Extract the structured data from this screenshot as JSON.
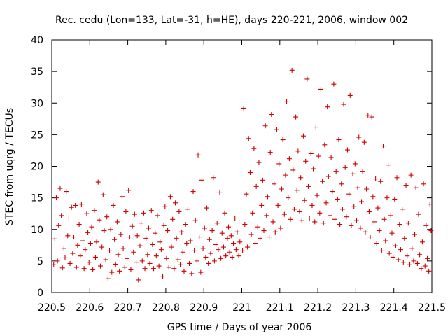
{
  "chart_data": {
    "type": "scatter",
    "title": "Rec. cedu (Lon=133, Lat=-31, h=HE), days 220-221, 2006, window 002",
    "xlabel": "GPS time / Days of year 2006",
    "ylabel": "STEC from uqrg / TECUs",
    "xlim": [
      220.5,
      221.5
    ],
    "ylim": [
      0,
      40
    ],
    "xticks": [
      220.5,
      220.6,
      220.7,
      220.8,
      220.9,
      221.0,
      221.1,
      221.2,
      221.3,
      221.4,
      221.5
    ],
    "xtick_labels": [
      "220.5",
      "220.6",
      "220.7",
      "220.8",
      "220.9",
      "221",
      "221.1",
      "221.2",
      "221.3",
      "221.4",
      "221.5"
    ],
    "yticks": [
      0,
      5,
      10,
      15,
      20,
      25,
      30,
      35,
      40
    ],
    "ytick_labels": [
      "0",
      "5",
      "10",
      "15",
      "20",
      "25",
      "30",
      "35",
      "40"
    ],
    "grid": false,
    "legend": "none",
    "marker_color": "#cc0000",
    "series": [
      {
        "marker": "plus",
        "points": [
          [
            220.505,
            4.4
          ],
          [
            220.508,
            8.5
          ],
          [
            220.512,
            15.0
          ],
          [
            220.515,
            5.0
          ],
          [
            220.518,
            10.6
          ],
          [
            220.522,
            16.5
          ],
          [
            220.525,
            12.2
          ],
          [
            220.528,
            3.9
          ],
          [
            220.532,
            7.0
          ],
          [
            220.535,
            5.5
          ],
          [
            220.538,
            16.0
          ],
          [
            220.542,
            9.0
          ],
          [
            220.545,
            11.8
          ],
          [
            220.548,
            4.6
          ],
          [
            220.552,
            13.5
          ],
          [
            220.555,
            6.2
          ],
          [
            220.558,
            8.8
          ],
          [
            220.562,
            13.8
          ],
          [
            220.565,
            4.0
          ],
          [
            220.568,
            7.5
          ],
          [
            220.572,
            10.8
          ],
          [
            220.575,
            5.8
          ],
          [
            220.578,
            14.0
          ],
          [
            220.582,
            8.2
          ],
          [
            220.585,
            3.8
          ],
          [
            220.588,
            6.8
          ],
          [
            220.592,
            12.5
          ],
          [
            220.595,
            9.5
          ],
          [
            220.598,
            4.8
          ],
          [
            220.602,
            7.8
          ],
          [
            220.605,
            10.4
          ],
          [
            220.608,
            3.6
          ],
          [
            220.612,
            13.0
          ],
          [
            220.615,
            5.6
          ],
          [
            220.618,
            8.0
          ],
          [
            220.622,
            17.5
          ],
          [
            220.625,
            11.5
          ],
          [
            220.628,
            4.2
          ],
          [
            220.632,
            7.2
          ],
          [
            220.635,
            15.5
          ],
          [
            220.638,
            9.8
          ],
          [
            220.642,
            5.2
          ],
          [
            220.645,
            12.0
          ],
          [
            220.648,
            2.2
          ],
          [
            220.652,
            6.6
          ],
          [
            220.655,
            10.0
          ],
          [
            220.658,
            3.2
          ],
          [
            220.662,
            13.8
          ],
          [
            220.665,
            8.4
          ],
          [
            220.668,
            4.5
          ],
          [
            220.672,
            11.2
          ],
          [
            220.675,
            6.0
          ],
          [
            220.678,
            3.4
          ],
          [
            220.682,
            9.2
          ],
          [
            220.685,
            15.2
          ],
          [
            220.688,
            7.0
          ],
          [
            220.692,
            4.0
          ],
          [
            220.695,
            12.8
          ],
          [
            220.698,
            5.4
          ],
          [
            220.702,
            16.2
          ],
          [
            220.705,
            8.8
          ],
          [
            220.708,
            3.6
          ],
          [
            220.712,
            10.5
          ],
          [
            220.715,
            6.4
          ],
          [
            220.718,
            12.4
          ],
          [
            220.722,
            4.8
          ],
          [
            220.725,
            9.0
          ],
          [
            220.728,
            2.0
          ],
          [
            220.732,
            7.4
          ],
          [
            220.735,
            11.0
          ],
          [
            220.738,
            5.0
          ],
          [
            220.742,
            12.6
          ],
          [
            220.745,
            3.8
          ],
          [
            220.748,
            8.6
          ],
          [
            220.752,
            6.0
          ],
          [
            220.755,
            10.2
          ],
          [
            220.758,
            4.6
          ],
          [
            220.762,
            13.0
          ],
          [
            220.765,
            7.6
          ],
          [
            220.768,
            3.8
          ],
          [
            220.772,
            9.4
          ],
          [
            220.775,
            5.8
          ],
          [
            220.778,
            12.2
          ],
          [
            220.782,
            4.2
          ],
          [
            220.785,
            8.0
          ],
          [
            220.788,
            6.8
          ],
          [
            220.792,
            2.6
          ],
          [
            220.795,
            10.6
          ],
          [
            220.798,
            13.6
          ],
          [
            220.802,
            5.4
          ],
          [
            220.805,
            9.8
          ],
          [
            220.808,
            4.0
          ],
          [
            220.812,
            15.2
          ],
          [
            220.815,
            7.2
          ],
          [
            220.818,
            11.6
          ],
          [
            220.822,
            3.8
          ],
          [
            220.825,
            14.2
          ],
          [
            220.828,
            8.6
          ],
          [
            220.832,
            5.2
          ],
          [
            220.835,
            12.8
          ],
          [
            220.838,
            4.4
          ],
          [
            220.842,
            9.6
          ],
          [
            220.845,
            6.4
          ],
          [
            220.848,
            3.4
          ],
          [
            220.852,
            10.8
          ],
          [
            220.855,
            7.8
          ],
          [
            220.858,
            13.2
          ],
          [
            220.862,
            4.6
          ],
          [
            220.865,
            8.2
          ],
          [
            220.868,
            3.0
          ],
          [
            220.872,
            16.0
          ],
          [
            220.875,
            6.6
          ],
          [
            220.878,
            11.4
          ],
          [
            220.882,
            5.0
          ],
          [
            220.885,
            21.8
          ],
          [
            220.888,
            8.8
          ],
          [
            220.892,
            3.2
          ],
          [
            220.895,
            17.8
          ],
          [
            220.898,
            7.0
          ],
          [
            220.902,
            10.2
          ],
          [
            220.905,
            5.6
          ],
          [
            220.908,
            13.4
          ],
          [
            220.912,
            4.6
          ],
          [
            220.915,
            8.4
          ],
          [
            220.918,
            6.2
          ],
          [
            220.922,
            9.8
          ],
          [
            220.925,
            18.2
          ],
          [
            220.928,
            5.0
          ],
          [
            220.932,
            7.6
          ],
          [
            220.935,
            11.0
          ],
          [
            220.938,
            6.8
          ],
          [
            220.942,
            15.8
          ],
          [
            220.945,
            5.4
          ],
          [
            220.948,
            9.4
          ],
          [
            220.952,
            7.2
          ],
          [
            220.955,
            12.6
          ],
          [
            220.958,
            5.8
          ],
          [
            220.962,
            8.6
          ],
          [
            220.965,
            10.4
          ],
          [
            220.968,
            6.4
          ],
          [
            220.972,
            9.0
          ],
          [
            220.975,
            5.6
          ],
          [
            220.978,
            7.8
          ],
          [
            220.982,
            11.8
          ],
          [
            220.985,
            6.8
          ],
          [
            220.988,
            9.6
          ],
          [
            220.992,
            5.8
          ],
          [
            220.995,
            8.0
          ],
          [
            221.002,
            6.6
          ],
          [
            221.005,
            29.2
          ],
          [
            221.008,
            10.8
          ],
          [
            221.012,
            15.6
          ],
          [
            221.015,
            7.2
          ],
          [
            221.018,
            24.4
          ],
          [
            221.022,
            19.0
          ],
          [
            221.025,
            9.2
          ],
          [
            221.028,
            12.6
          ],
          [
            221.032,
            22.8
          ],
          [
            221.035,
            7.8
          ],
          [
            221.038,
            16.8
          ],
          [
            221.042,
            10.4
          ],
          [
            221.045,
            20.6
          ],
          [
            221.048,
            8.6
          ],
          [
            221.052,
            13.8
          ],
          [
            221.055,
            17.8
          ],
          [
            221.058,
            9.8
          ],
          [
            221.062,
            26.4
          ],
          [
            221.065,
            12.2
          ],
          [
            221.068,
            15.2
          ],
          [
            221.072,
            8.8
          ],
          [
            221.075,
            22.2
          ],
          [
            221.078,
            28.2
          ],
          [
            221.082,
            11.2
          ],
          [
            221.085,
            17.2
          ],
          [
            221.088,
            9.6
          ],
          [
            221.092,
            25.8
          ],
          [
            221.095,
            13.8
          ],
          [
            221.098,
            20.4
          ],
          [
            221.102,
            10.2
          ],
          [
            221.105,
            16.4
          ],
          [
            221.108,
            24.2
          ],
          [
            221.112,
            12.4
          ],
          [
            221.115,
            18.6
          ],
          [
            221.118,
            30.2
          ],
          [
            221.122,
            15.0
          ],
          [
            221.125,
            21.2
          ],
          [
            221.128,
            11.6
          ],
          [
            221.132,
            35.2
          ],
          [
            221.135,
            19.4
          ],
          [
            221.138,
            13.2
          ],
          [
            221.142,
            27.8
          ],
          [
            221.145,
            16.2
          ],
          [
            221.148,
            22.4
          ],
          [
            221.152,
            12.8
          ],
          [
            221.155,
            18.2
          ],
          [
            221.158,
            11.4
          ],
          [
            221.162,
            24.8
          ],
          [
            221.165,
            14.6
          ],
          [
            221.168,
            20.8
          ],
          [
            221.172,
            33.8
          ],
          [
            221.175,
            16.8
          ],
          [
            221.178,
            11.8
          ],
          [
            221.182,
            22.0
          ],
          [
            221.185,
            13.8
          ],
          [
            221.188,
            19.6
          ],
          [
            221.192,
            11.2
          ],
          [
            221.195,
            26.2
          ],
          [
            221.198,
            15.4
          ],
          [
            221.202,
            21.6
          ],
          [
            221.205,
            12.6
          ],
          [
            221.208,
            32.2
          ],
          [
            221.212,
            17.6
          ],
          [
            221.215,
            11.0
          ],
          [
            221.218,
            23.4
          ],
          [
            221.222,
            14.2
          ],
          [
            221.225,
            29.4
          ],
          [
            221.228,
            18.4
          ],
          [
            221.232,
            12.2
          ],
          [
            221.235,
            21.4
          ],
          [
            221.238,
            16.0
          ],
          [
            221.242,
            33.0
          ],
          [
            221.245,
            11.6
          ],
          [
            221.248,
            19.2
          ],
          [
            221.252,
            14.8
          ],
          [
            221.255,
            24.2
          ],
          [
            221.258,
            10.8
          ],
          [
            221.262,
            17.2
          ],
          [
            221.265,
            13.2
          ],
          [
            221.268,
            29.8
          ],
          [
            221.272,
            19.8
          ],
          [
            221.275,
            12.0
          ],
          [
            221.278,
            22.6
          ],
          [
            221.282,
            15.6
          ],
          [
            221.285,
            31.2
          ],
          [
            221.288,
            10.6
          ],
          [
            221.292,
            18.8
          ],
          [
            221.295,
            13.6
          ],
          [
            221.298,
            20.4
          ],
          [
            221.302,
            11.4
          ],
          [
            221.305,
            16.6
          ],
          [
            221.308,
            24.6
          ],
          [
            221.312,
            10.2
          ],
          [
            221.315,
            14.4
          ],
          [
            221.318,
            19.2
          ],
          [
            221.322,
            23.8
          ],
          [
            221.325,
            9.6
          ],
          [
            221.328,
            16.4
          ],
          [
            221.332,
            28.0
          ],
          [
            221.335,
            12.8
          ],
          [
            221.338,
            8.8
          ],
          [
            221.342,
            27.8
          ],
          [
            221.345,
            15.2
          ],
          [
            221.348,
            11.2
          ],
          [
            221.352,
            18.0
          ],
          [
            221.355,
            7.8
          ],
          [
            221.358,
            13.4
          ],
          [
            221.362,
            9.8
          ],
          [
            221.365,
            17.6
          ],
          [
            221.368,
            6.6
          ],
          [
            221.372,
            23.2
          ],
          [
            221.375,
            11.6
          ],
          [
            221.378,
            8.2
          ],
          [
            221.382,
            15.0
          ],
          [
            221.385,
            20.2
          ],
          [
            221.388,
            6.2
          ],
          [
            221.392,
            12.2
          ],
          [
            221.395,
            9.4
          ],
          [
            221.398,
            5.6
          ],
          [
            221.402,
            14.8
          ],
          [
            221.405,
            7.4
          ],
          [
            221.408,
            18.2
          ],
          [
            221.412,
            5.2
          ],
          [
            221.415,
            10.8
          ],
          [
            221.418,
            6.8
          ],
          [
            221.422,
            13.2
          ],
          [
            221.425,
            4.8
          ],
          [
            221.428,
            8.6
          ],
          [
            221.432,
            17.0
          ],
          [
            221.435,
            5.8
          ],
          [
            221.438,
            11.0
          ],
          [
            221.442,
            4.4
          ],
          [
            221.445,
            18.6
          ],
          [
            221.448,
            7.0
          ],
          [
            221.452,
            5.0
          ],
          [
            221.455,
            9.2
          ],
          [
            221.458,
            16.6
          ],
          [
            221.462,
            4.6
          ],
          [
            221.465,
            12.4
          ],
          [
            221.468,
            6.0
          ],
          [
            221.472,
            3.8
          ],
          [
            221.475,
            8.0
          ],
          [
            221.478,
            17.2
          ],
          [
            221.482,
            4.2
          ],
          [
            221.485,
            10.6
          ],
          [
            221.488,
            5.4
          ],
          [
            221.492,
            3.4
          ],
          [
            221.495,
            14.0
          ],
          [
            221.498,
            9.8
          ]
        ]
      }
    ]
  }
}
